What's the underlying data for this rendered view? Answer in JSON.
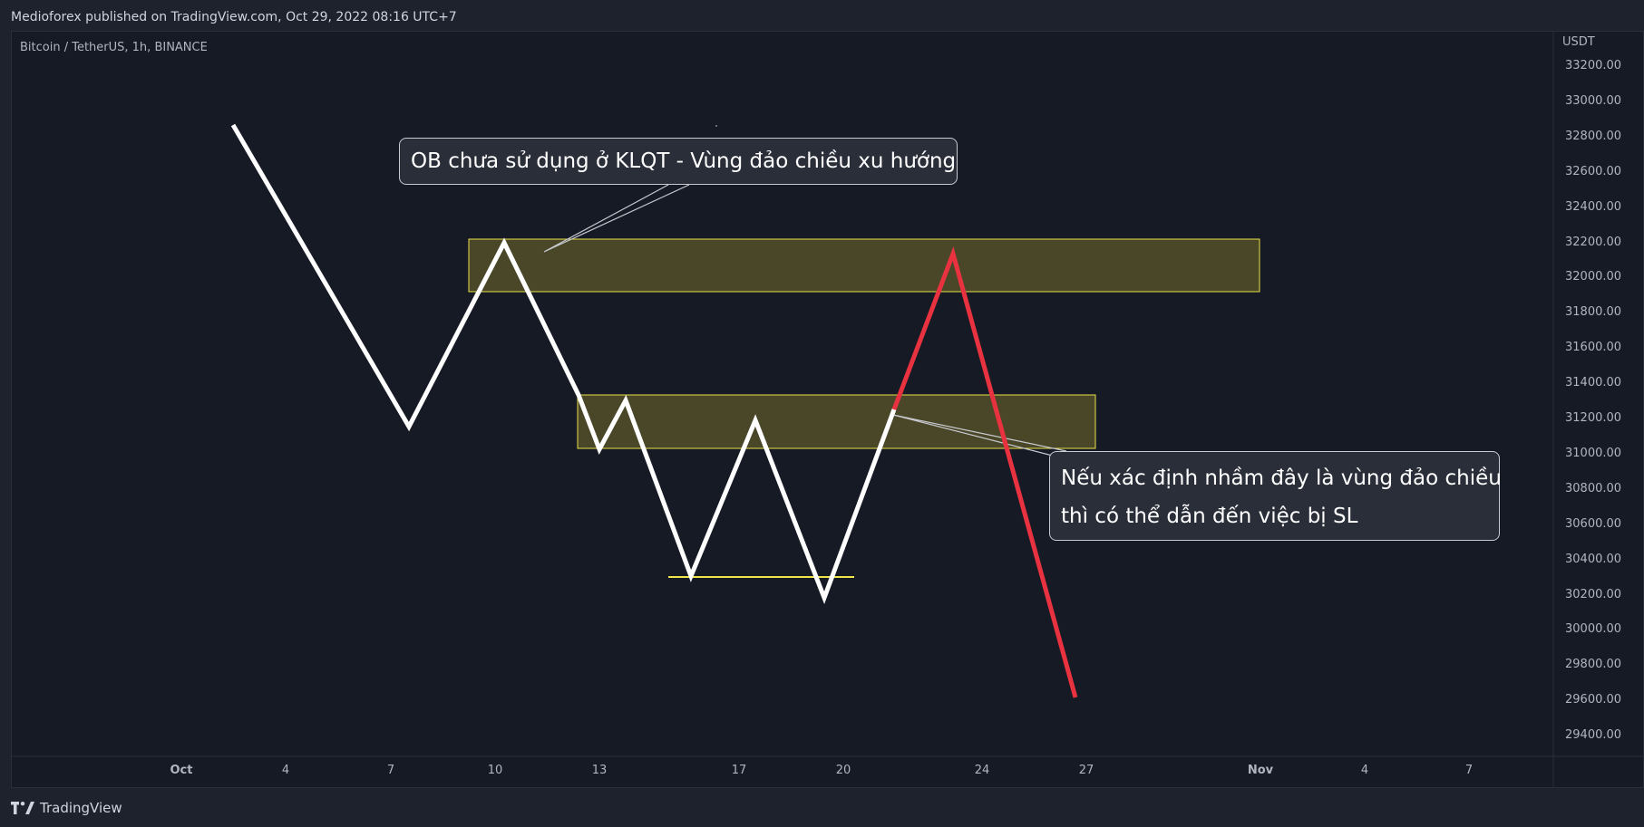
{
  "header": {
    "published_text": "Medioforex published on TradingView.com, Oct 29, 2022 08:16 UTC+7"
  },
  "symbol": {
    "text": "Bitcoin / TetherUS, 1h, BINANCE"
  },
  "price_axis": {
    "currency": "USDT",
    "labels": [
      "33200.00",
      "33000.00",
      "32800.00",
      "32600.00",
      "32400.00",
      "32200.00",
      "32000.00",
      "31800.00",
      "31600.00",
      "31400.00",
      "31200.00",
      "31000.00",
      "30800.00",
      "30600.00",
      "30400.00",
      "30200.00",
      "30000.00",
      "29800.00",
      "29600.00",
      "29400.00"
    ]
  },
  "time_axis": {
    "labels": [
      "Oct",
      "4",
      "7",
      "10",
      "13",
      "17",
      "20",
      "24",
      "27",
      "Nov",
      "4",
      "7"
    ]
  },
  "annotations": {
    "callout_top": "OB chưa sử dụng ở KLQT - Vùng đảo chiều xu hướng",
    "callout_bottom_line1": "Nếu xác định nhầm đây là vùng đảo chiều",
    "callout_bottom_line2": "thì có thể dẫn đến việc bị SL"
  },
  "zones": [
    {
      "name": "upper-order-block",
      "from_price": 31930,
      "to_price": 32220
    },
    {
      "name": "lower-order-block",
      "from_price": 31030,
      "to_price": 31340
    }
  ],
  "colors": {
    "background": "#161a25",
    "zone_fill": "#4a4728",
    "zone_border": "#e9e04a",
    "path_white": "#ffffff",
    "path_red": "#e8323f",
    "support_line": "#f0e64a"
  },
  "footer": {
    "brand": "TradingView"
  }
}
